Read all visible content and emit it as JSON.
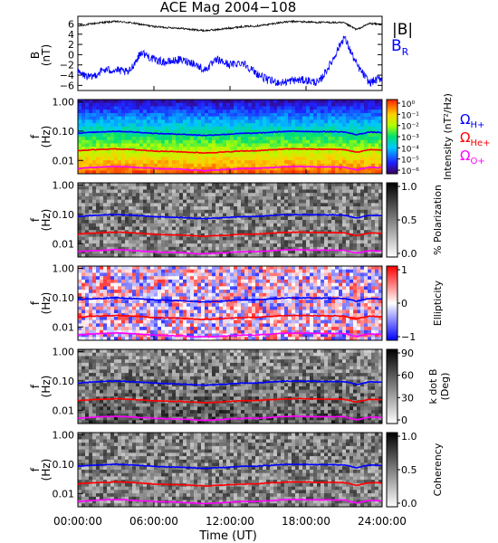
{
  "title": "ACE Mag 2004−108",
  "x_axis": {
    "label": "Time (UT)",
    "ticks": [
      "00:00:00",
      "06:00:00",
      "12:00:00",
      "18:00:00",
      "24:00:00"
    ],
    "range_hours": [
      0,
      24
    ]
  },
  "freq_axis": {
    "label_top": "f",
    "label_bottom": "(Hz)",
    "ticks": [
      "1.00",
      "0.10",
      "0.01"
    ],
    "scale": "log",
    "range_hz": [
      0.0035,
      1.2
    ]
  },
  "gyro_labels": {
    "h": "ΩH+",
    "he": "ΩHe+",
    "o": "ΩO+"
  },
  "colors": {
    "b_total": "#000000",
    "b_r": "#0000ff",
    "omega_h": "#0000ff",
    "omega_he": "#ff0000",
    "omega_o": "#ff00ff"
  },
  "chart_data": [
    {
      "type": "line",
      "panel": "B field",
      "ylabel_top": "B",
      "ylabel_bottom": "(nT)",
      "ylim": [
        -7,
        7.5
      ],
      "yticks": [
        "6",
        "4",
        "2",
        "0",
        "−2",
        "−4",
        "−6"
      ],
      "legend": [
        "|B|",
        "B_R"
      ],
      "series": [
        {
          "name": "|B|",
          "x": [
            0,
            1,
            2,
            3,
            4,
            5,
            6,
            7,
            8,
            9,
            10,
            11,
            12,
            13,
            14,
            15,
            16,
            17,
            18,
            19,
            20,
            21,
            22,
            23,
            24
          ],
          "values": [
            5.6,
            6.0,
            6.3,
            6.5,
            6.3,
            5.9,
            5.5,
            5.3,
            5.2,
            4.9,
            4.7,
            4.9,
            5.2,
            5.5,
            5.6,
            5.9,
            6.3,
            6.5,
            6.4,
            6.3,
            6.3,
            6.2,
            4.9,
            6.1,
            5.9
          ]
        },
        {
          "name": "B_R",
          "x": [
            0,
            1,
            2,
            3,
            4,
            5,
            6,
            7,
            8,
            9,
            10,
            11,
            12,
            13,
            14,
            15,
            16,
            17,
            18,
            19,
            20,
            21,
            22,
            23,
            24
          ],
          "values": [
            -3.5,
            -4.5,
            -3.0,
            -3.0,
            -3.5,
            0.5,
            -1.0,
            -1.5,
            -1.0,
            -1.5,
            -3.0,
            -1.0,
            -2.0,
            -1.5,
            -3.5,
            -5.0,
            -5.5,
            -5.0,
            -5.0,
            -5.5,
            -1.5,
            3.5,
            -2.0,
            -5.5,
            -4.5
          ]
        }
      ]
    },
    {
      "type": "heatmap",
      "panel": "Power spectrum",
      "colorbar_label": "Intensity (nT²/Hz)",
      "colorbar_ticks": [
        "10⁰",
        "10⁻¹",
        "10⁻²",
        "10⁻³",
        "10⁻⁴",
        "10⁻⁵",
        "10⁻⁶"
      ]
    },
    {
      "type": "heatmap",
      "panel": "Polarization",
      "colorbar_label": "% Polarization",
      "colorbar_ticks": [
        "1.0",
        "0.5",
        "0.0"
      ]
    },
    {
      "type": "heatmap",
      "panel": "Ellipticity",
      "colorbar_label": "Ellipticity",
      "colorbar_ticks": [
        "1",
        "0",
        "−1"
      ]
    },
    {
      "type": "heatmap",
      "panel": "Wave normal angle",
      "colorbar_label_top": "k dot B",
      "colorbar_label_bottom": "(Deg)",
      "colorbar_ticks": [
        "90",
        "60",
        "30",
        "0"
      ]
    },
    {
      "type": "heatmap",
      "panel": "Coherency",
      "colorbar_label": "Coherency",
      "colorbar_ticks": [
        "1.0",
        "0.5",
        "0.0"
      ]
    }
  ],
  "gyrofrequency_curves": {
    "x": [
      0,
      1,
      2,
      3,
      4,
      5,
      6,
      7,
      8,
      9,
      10,
      11,
      12,
      13,
      14,
      15,
      16,
      17,
      18,
      19,
      20,
      21,
      22,
      23,
      24
    ],
    "omega_h_hz": [
      0.085,
      0.091,
      0.095,
      0.099,
      0.095,
      0.09,
      0.084,
      0.081,
      0.079,
      0.075,
      0.072,
      0.075,
      0.079,
      0.084,
      0.085,
      0.09,
      0.096,
      0.099,
      0.098,
      0.096,
      0.096,
      0.094,
      0.075,
      0.093,
      0.09
    ],
    "omega_he_hz": [
      0.0213,
      0.0228,
      0.0238,
      0.0248,
      0.0238,
      0.0225,
      0.021,
      0.0203,
      0.0198,
      0.0188,
      0.018,
      0.0188,
      0.0198,
      0.021,
      0.0213,
      0.0225,
      0.024,
      0.0248,
      0.0245,
      0.024,
      0.024,
      0.0235,
      0.0188,
      0.0233,
      0.0225
    ],
    "omega_o_hz": [
      0.0053,
      0.0057,
      0.006,
      0.0062,
      0.006,
      0.0056,
      0.0053,
      0.0051,
      0.005,
      0.0047,
      0.0045,
      0.0047,
      0.005,
      0.0053,
      0.0053,
      0.0056,
      0.006,
      0.0062,
      0.0061,
      0.006,
      0.006,
      0.0059,
      0.0047,
      0.0058,
      0.0056
    ]
  }
}
